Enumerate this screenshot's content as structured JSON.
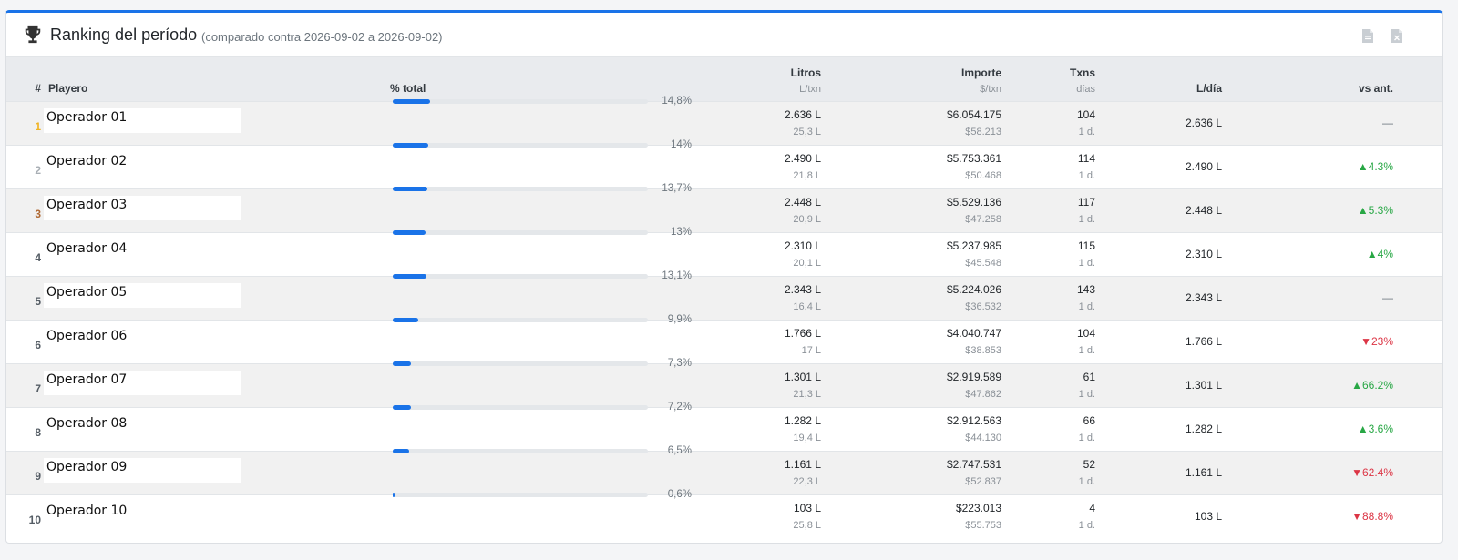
{
  "header": {
    "title": "Ranking del período",
    "subtitle": "(comparado contra 2026-09-02 a 2026-09-02)",
    "icons": [
      "trophy-icon",
      "pdf-export-icon",
      "excel-export-icon"
    ]
  },
  "columns": {
    "rank": "#",
    "name": "Playero",
    "pct": "% total",
    "litros": "Litros",
    "litros_sub": "L/txn",
    "importe": "Importe",
    "importe_sub": "$/txn",
    "txns": "Txns",
    "txns_sub": "días",
    "ldia": "L/día",
    "vs": "vs ant."
  },
  "colors": {
    "accent": "#1a73e8",
    "up": "#28a745",
    "down": "#dc3545",
    "gold": "#f0b323",
    "silver": "#a8aeb4",
    "bronze": "#b06a35"
  },
  "rows": [
    {
      "rank": "1",
      "name": "Operador 01",
      "pct_value": 14.8,
      "pct": "14,8%",
      "litros": "2.636 L",
      "l_txn": "25,3 L",
      "importe": "$6.054.175",
      "imp_txn": "$58.213",
      "txns": "104",
      "dias": "1 d.",
      "ldia": "2.636 L",
      "vs": "—",
      "trend": "none"
    },
    {
      "rank": "2",
      "name": "Operador 02",
      "pct_value": 14.0,
      "pct": "14%",
      "litros": "2.490 L",
      "l_txn": "21,8 L",
      "importe": "$5.753.361",
      "imp_txn": "$50.468",
      "txns": "114",
      "dias": "1 d.",
      "ldia": "2.490 L",
      "vs": "▲4.3%",
      "trend": "up"
    },
    {
      "rank": "3",
      "name": "Operador 03",
      "pct_value": 13.7,
      "pct": "13,7%",
      "litros": "2.448 L",
      "l_txn": "20,9 L",
      "importe": "$5.529.136",
      "imp_txn": "$47.258",
      "txns": "117",
      "dias": "1 d.",
      "ldia": "2.448 L",
      "vs": "▲5.3%",
      "trend": "up"
    },
    {
      "rank": "4",
      "name": "Operador 04",
      "pct_value": 13.0,
      "pct": "13%",
      "litros": "2.310 L",
      "l_txn": "20,1 L",
      "importe": "$5.237.985",
      "imp_txn": "$45.548",
      "txns": "115",
      "dias": "1 d.",
      "ldia": "2.310 L",
      "vs": "▲4%",
      "trend": "up"
    },
    {
      "rank": "5",
      "name": "Operador 05",
      "pct_value": 13.1,
      "pct": "13,1%",
      "litros": "2.343 L",
      "l_txn": "16,4 L",
      "importe": "$5.224.026",
      "imp_txn": "$36.532",
      "txns": "143",
      "dias": "1 d.",
      "ldia": "2.343 L",
      "vs": "—",
      "trend": "none"
    },
    {
      "rank": "6",
      "name": "Operador 06",
      "pct_value": 9.9,
      "pct": "9,9%",
      "litros": "1.766 L",
      "l_txn": "17 L",
      "importe": "$4.040.747",
      "imp_txn": "$38.853",
      "txns": "104",
      "dias": "1 d.",
      "ldia": "1.766 L",
      "vs": "▼23%",
      "trend": "down"
    },
    {
      "rank": "7",
      "name": "Operador 07",
      "pct_value": 7.3,
      "pct": "7,3%",
      "litros": "1.301 L",
      "l_txn": "21,3 L",
      "importe": "$2.919.589",
      "imp_txn": "$47.862",
      "txns": "61",
      "dias": "1 d.",
      "ldia": "1.301 L",
      "vs": "▲66.2%",
      "trend": "up"
    },
    {
      "rank": "8",
      "name": "Operador 08",
      "pct_value": 7.2,
      "pct": "7,2%",
      "litros": "1.282 L",
      "l_txn": "19,4 L",
      "importe": "$2.912.563",
      "imp_txn": "$44.130",
      "txns": "66",
      "dias": "1 d.",
      "ldia": "1.282 L",
      "vs": "▲3.6%",
      "trend": "up"
    },
    {
      "rank": "9",
      "name": "Operador 09",
      "pct_value": 6.5,
      "pct": "6,5%",
      "litros": "1.161 L",
      "l_txn": "22,3 L",
      "importe": "$2.747.531",
      "imp_txn": "$52.837",
      "txns": "52",
      "dias": "1 d.",
      "ldia": "1.161 L",
      "vs": "▼62.4%",
      "trend": "down"
    },
    {
      "rank": "10",
      "name": "Operador 10",
      "pct_value": 0.6,
      "pct": "0,6%",
      "litros": "103 L",
      "l_txn": "25,8 L",
      "importe": "$223.013",
      "imp_txn": "$55.753",
      "txns": "4",
      "dias": "1 d.",
      "ldia": "103 L",
      "vs": "▼88.8%",
      "trend": "down"
    }
  ]
}
